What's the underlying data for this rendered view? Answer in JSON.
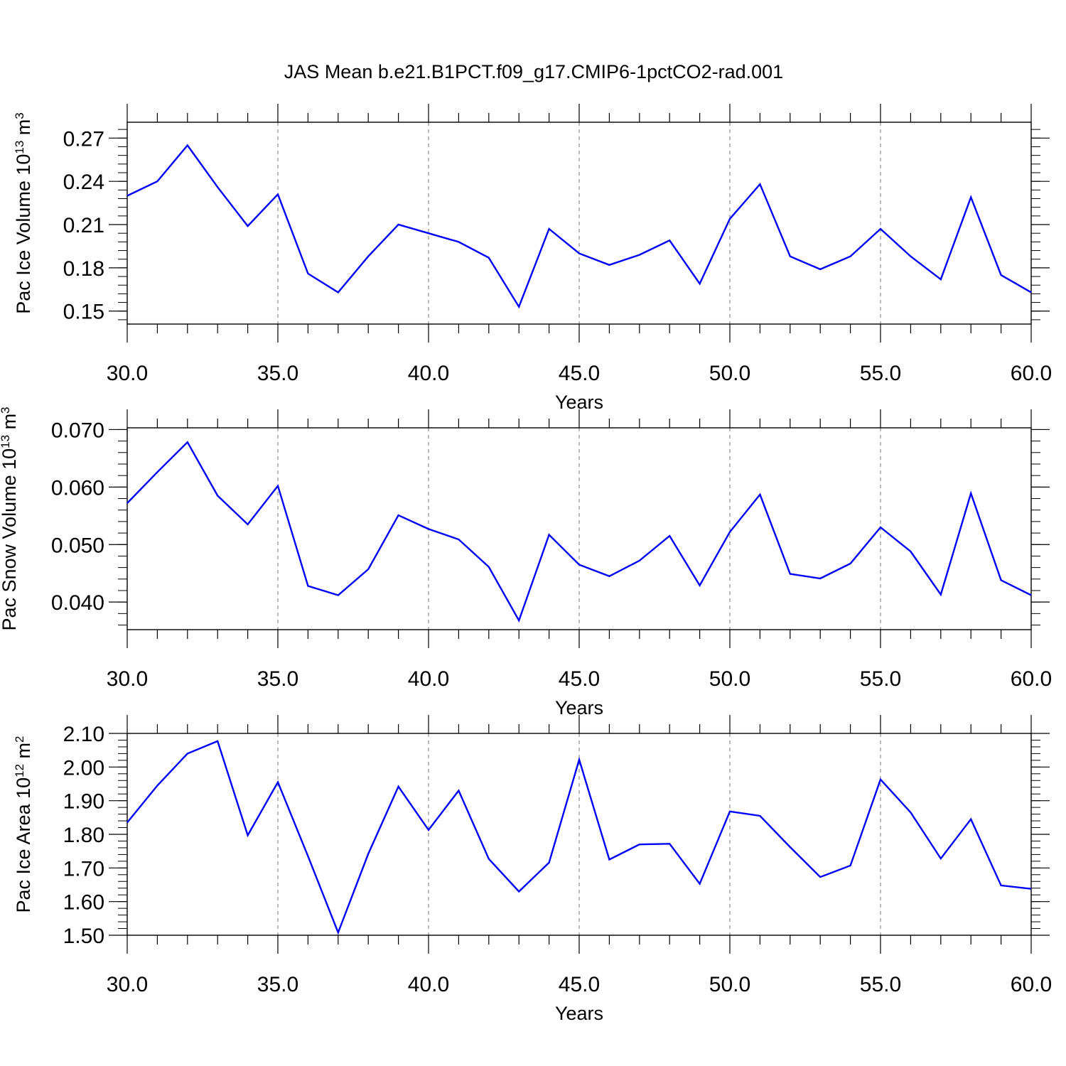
{
  "title": "JAS Mean b.e21.B1PCT.f09_g17.CMIP6-1pctCO2-rad.001",
  "colors": {
    "line": "#0000ff",
    "frame": "#000000",
    "grid": "#777777"
  },
  "chart_data": [
    {
      "type": "line",
      "ylabel": "Pac Ice Volume 10",
      "ylabel_sup": "13",
      "ylabel_unit": "m",
      "ylabel_unit_sup": "3",
      "xlabel": "Years",
      "xlim": [
        30,
        60
      ],
      "ylim": [
        0.141,
        0.281
      ],
      "xticks": [
        30,
        35,
        40,
        45,
        50,
        55,
        60
      ],
      "xtick_labels": [
        "30.0",
        "35.0",
        "40.0",
        "45.0",
        "50.0",
        "55.0",
        "60.0"
      ],
      "yticks": [
        0.15,
        0.18,
        0.21,
        0.24,
        0.27
      ],
      "ytick_labels": [
        "0.15",
        "0.18",
        "0.21",
        "0.24",
        "0.27"
      ],
      "grid": "vertical dashed at major x ticks",
      "x": [
        30,
        31,
        32,
        33,
        34,
        35,
        36,
        37,
        38,
        39,
        40,
        41,
        42,
        43,
        44,
        45,
        46,
        47,
        48,
        49,
        50,
        51,
        52,
        53,
        54,
        55,
        56,
        57,
        58,
        59,
        60
      ],
      "values": [
        0.23,
        0.24,
        0.265,
        0.236,
        0.209,
        0.231,
        0.176,
        0.163,
        0.188,
        0.21,
        0.204,
        0.198,
        0.187,
        0.153,
        0.207,
        0.19,
        0.182,
        0.189,
        0.199,
        0.169,
        0.214,
        0.238,
        0.188,
        0.179,
        0.188,
        0.207,
        0.188,
        0.172,
        0.229,
        0.175,
        0.163
      ]
    },
    {
      "type": "line",
      "ylabel": "Pac Snow Volume 10",
      "ylabel_sup": "13",
      "ylabel_unit": "m",
      "ylabel_unit_sup": "3",
      "xlabel": "Years",
      "xlim": [
        30,
        60
      ],
      "ylim": [
        0.0352,
        0.0703
      ],
      "xticks": [
        30,
        35,
        40,
        45,
        50,
        55,
        60
      ],
      "xtick_labels": [
        "30.0",
        "35.0",
        "40.0",
        "45.0",
        "50.0",
        "55.0",
        "60.0"
      ],
      "yticks": [
        0.04,
        0.05,
        0.06,
        0.07
      ],
      "ytick_labels": [
        "0.040",
        "0.050",
        "0.060",
        "0.070"
      ],
      "grid": "vertical dashed at major x ticks",
      "x": [
        30,
        31,
        32,
        33,
        34,
        35,
        36,
        37,
        38,
        39,
        40,
        41,
        42,
        43,
        44,
        45,
        46,
        47,
        48,
        49,
        50,
        51,
        52,
        53,
        54,
        55,
        56,
        57,
        58,
        59,
        60
      ],
      "values": [
        0.0572,
        0.0626,
        0.0678,
        0.0585,
        0.0535,
        0.0602,
        0.0428,
        0.0412,
        0.0457,
        0.0551,
        0.0527,
        0.0509,
        0.0461,
        0.0368,
        0.0517,
        0.0465,
        0.0445,
        0.0472,
        0.0515,
        0.0429,
        0.0522,
        0.0587,
        0.0449,
        0.0441,
        0.0467,
        0.053,
        0.0488,
        0.0413,
        0.0589,
        0.0438,
        0.0412
      ]
    },
    {
      "type": "line",
      "ylabel": "Pac Ice Area 10",
      "ylabel_sup": "12",
      "ylabel_unit": "m",
      "ylabel_unit_sup": "2",
      "xlabel": "Years",
      "xlim": [
        30,
        60
      ],
      "ylim": [
        1.5,
        2.1
      ],
      "xticks": [
        30,
        35,
        40,
        45,
        50,
        55,
        60
      ],
      "xtick_labels": [
        "30.0",
        "35.0",
        "40.0",
        "45.0",
        "50.0",
        "55.0",
        "60.0"
      ],
      "yticks": [
        1.5,
        1.6,
        1.7,
        1.8,
        1.9,
        2.0,
        2.1
      ],
      "ytick_labels": [
        "1.50",
        "1.60",
        "1.70",
        "1.80",
        "1.90",
        "2.00",
        "2.10"
      ],
      "grid": "vertical dashed at major x ticks",
      "x": [
        30,
        31,
        32,
        33,
        34,
        35,
        36,
        37,
        38,
        39,
        40,
        41,
        42,
        43,
        44,
        45,
        46,
        47,
        48,
        49,
        50,
        51,
        52,
        53,
        54,
        55,
        56,
        57,
        58,
        59,
        60
      ],
      "values": [
        1.835,
        1.945,
        2.04,
        2.077,
        1.797,
        1.955,
        1.735,
        1.508,
        1.742,
        1.942,
        1.813,
        1.93,
        1.727,
        1.63,
        1.716,
        2.022,
        1.725,
        1.77,
        1.772,
        1.653,
        1.868,
        1.855,
        1.762,
        1.673,
        1.707,
        1.963,
        1.865,
        1.728,
        1.845,
        1.648,
        1.638
      ]
    }
  ]
}
